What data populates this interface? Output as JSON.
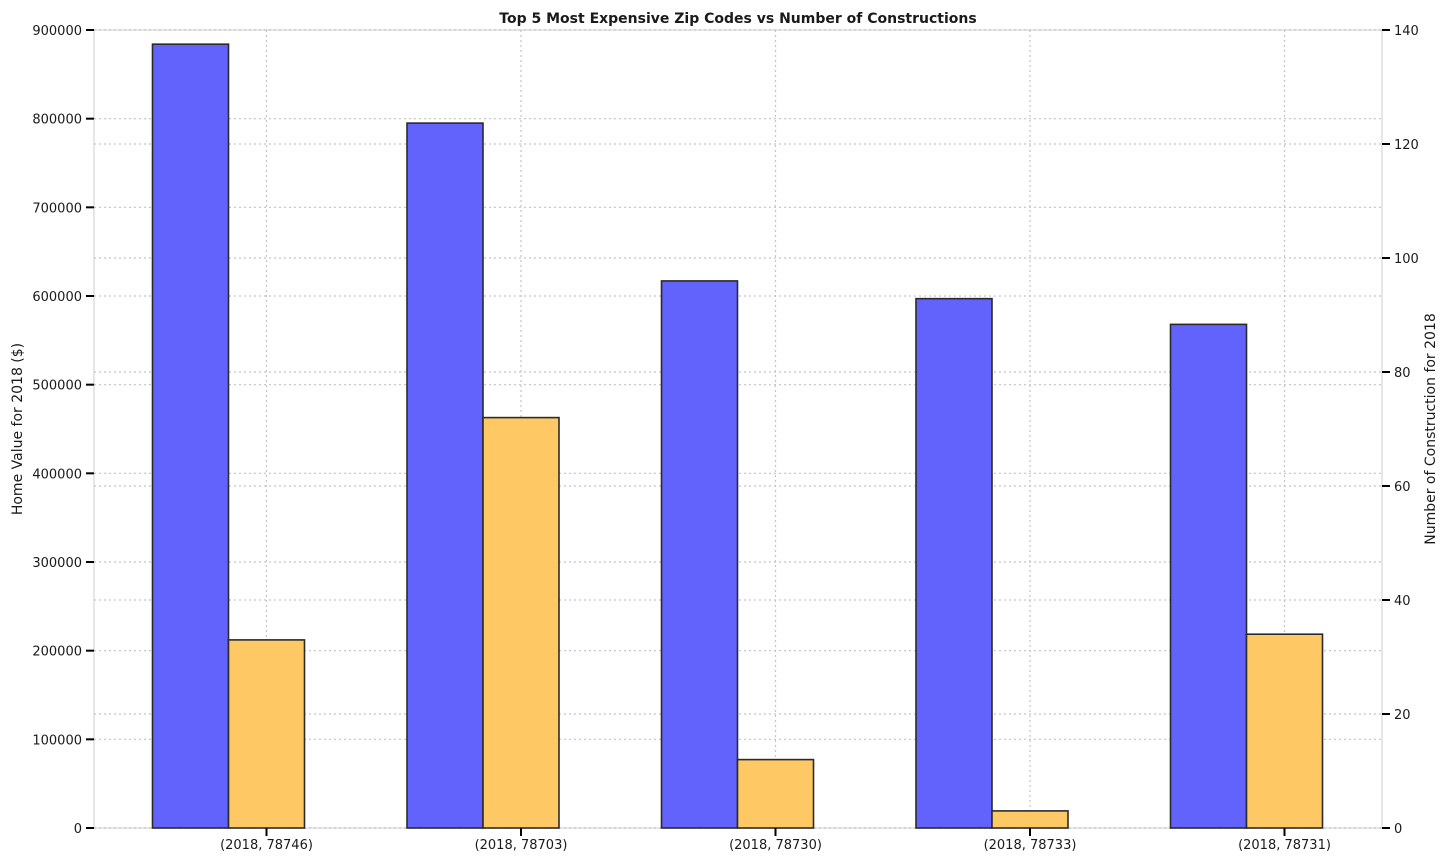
{
  "chart_data": {
    "type": "bar",
    "title": "Top 5 Most Expensive Zip Codes vs Number of Constructions",
    "categories": [
      "(2018, 78746)",
      "(2018, 78703)",
      "(2018, 78730)",
      "(2018, 78733)",
      "(2018, 78731)"
    ],
    "series": [
      {
        "axis": "left",
        "color": "#6262fd",
        "values": [
          884000,
          795000,
          617000,
          597000,
          568000
        ]
      },
      {
        "axis": "right",
        "color": "#fec965",
        "values": [
          33,
          72,
          12,
          3,
          34
        ]
      }
    ],
    "ylabel": "Home Value for 2018 ($)",
    "ylabel_right": "Number of Construction for 2018",
    "ylim": [
      0,
      900000
    ],
    "ylim_right": [
      0,
      140
    ],
    "yticks": [
      0,
      100000,
      200000,
      300000,
      400000,
      500000,
      600000,
      700000,
      800000,
      900000
    ],
    "yticks_right": [
      0,
      20,
      40,
      60,
      80,
      100,
      120,
      140
    ],
    "grid": true
  }
}
